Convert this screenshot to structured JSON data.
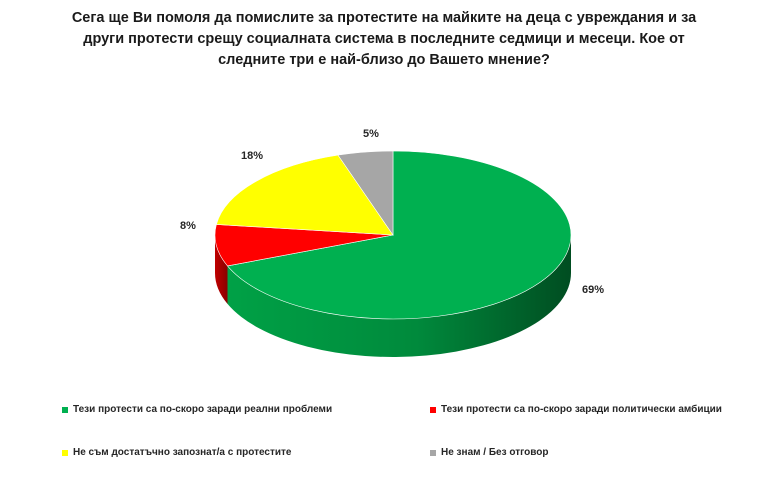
{
  "chart_data": {
    "type": "pie",
    "title_lines": [
      "Сега ще Ви помоля да помислите за протестите на майките на деца с увреждания и за",
      "други протести срещу социалната система в последните седмици и месеци. Кое от",
      "следните три е най-близо до Вашето мнение?"
    ],
    "slices": [
      {
        "name": "Тези протести са по-скоро заради реални проблеми",
        "value": 69,
        "label": "69%",
        "color": "#00b050"
      },
      {
        "name": "Тези протести са по-скоро заради политически амбиции",
        "value": 8,
        "label": "8%",
        "color": "#ff0000"
      },
      {
        "name": "Не съм достатъчно запознат/а с протестите",
        "value": 18,
        "label": "18%",
        "color": "#ffff00"
      },
      {
        "name": "Не знам / Без отговор",
        "value": 5,
        "label": "5%",
        "color": "#a6a6a6"
      }
    ],
    "legend_position": "bottom",
    "style": "3d"
  }
}
